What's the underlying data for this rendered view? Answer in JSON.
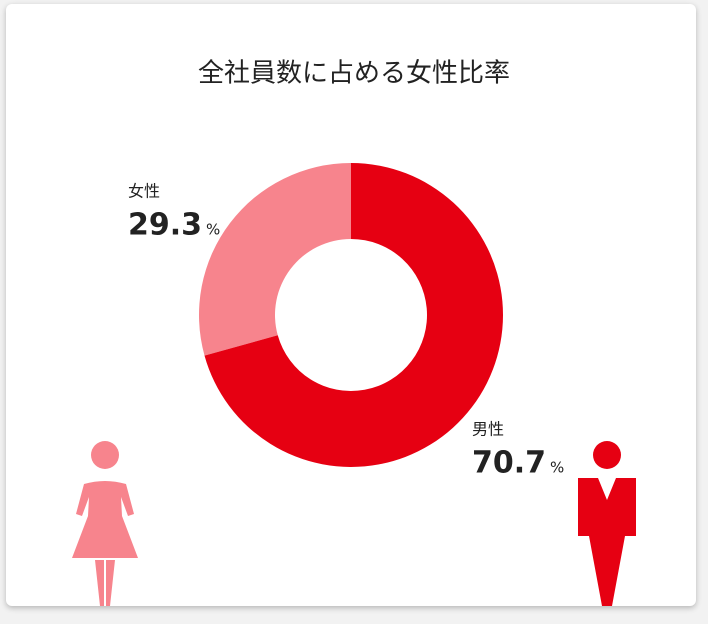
{
  "chart_data": {
    "type": "donut",
    "title": "全社員数に占める女性比率",
    "categories": [
      "女性",
      "男性"
    ],
    "values": [
      29.3,
      70.7
    ],
    "unit": "%",
    "colors": [
      "#f7848d",
      "#e60012"
    ]
  }
}
